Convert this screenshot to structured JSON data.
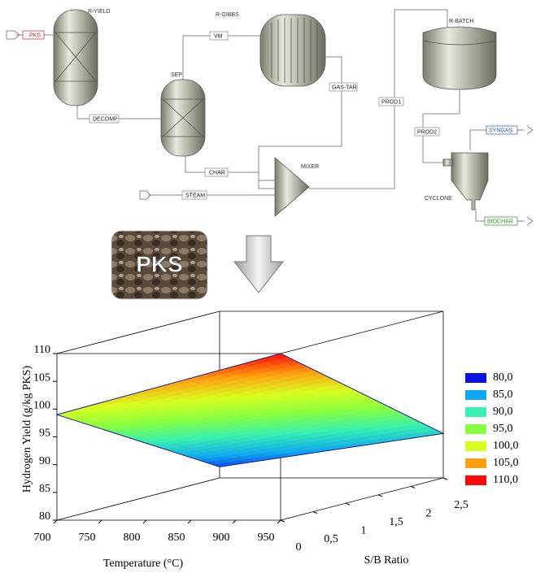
{
  "diagram": {
    "blocks": {
      "ryield": "R-YIELD",
      "sep": "SEP",
      "rgibbs": "R-GIBBS",
      "rbatch": "R-BATCH",
      "mixer": "MIXER",
      "cyclone": "CYCLONE"
    },
    "streams": {
      "pks": "PKS",
      "decomp": "DECOMP",
      "vm": "VM",
      "gastar": "GAS-TAR",
      "char": "CHAR",
      "steam": "STEAM",
      "prod1": "PROD1",
      "prod2": "PROD2",
      "syngas": "SYNGAS",
      "biochar": "BIOCHAR"
    }
  },
  "feedstock": "PKS",
  "chart_data": {
    "type": "surface",
    "z_label": "Hydrogen Yield (g/kg PKS)",
    "x_label": "Temperature (°C)",
    "y_label": "S/B Ratio",
    "x": [
      700,
      950
    ],
    "y": [
      0,
      2.5
    ],
    "z": [
      [
        99,
        82
      ],
      [
        110,
        88
      ]
    ],
    "xlim": [
      700,
      950
    ],
    "xticks": [
      700,
      750,
      800,
      850,
      900,
      950
    ],
    "ylim": [
      0,
      2.5
    ],
    "yticks": [
      0,
      {
        "value": 0.5,
        "label": "0,5"
      },
      1,
      {
        "value": 1.5,
        "label": "1,5"
      },
      2,
      {
        "value": 2.5,
        "label": "2,5"
      }
    ],
    "zlim": [
      80,
      110
    ],
    "zticks": [
      80,
      85,
      90,
      95,
      100,
      105,
      110
    ],
    "colorbar": [
      {
        "value": 80,
        "label": "80,0",
        "color": "#0a10e6"
      },
      {
        "value": 85,
        "label": "85,0",
        "color": "#10a8f0"
      },
      {
        "value": 90,
        "label": "90,0",
        "color": "#38f0b0"
      },
      {
        "value": 95,
        "label": "95,0",
        "color": "#88ff40"
      },
      {
        "value": 100,
        "label": "100,0",
        "color": "#d8ff20"
      },
      {
        "value": 105,
        "label": "105,0",
        "color": "#ffa010"
      },
      {
        "value": 110,
        "label": "110,0",
        "color": "#ff0808"
      }
    ]
  }
}
